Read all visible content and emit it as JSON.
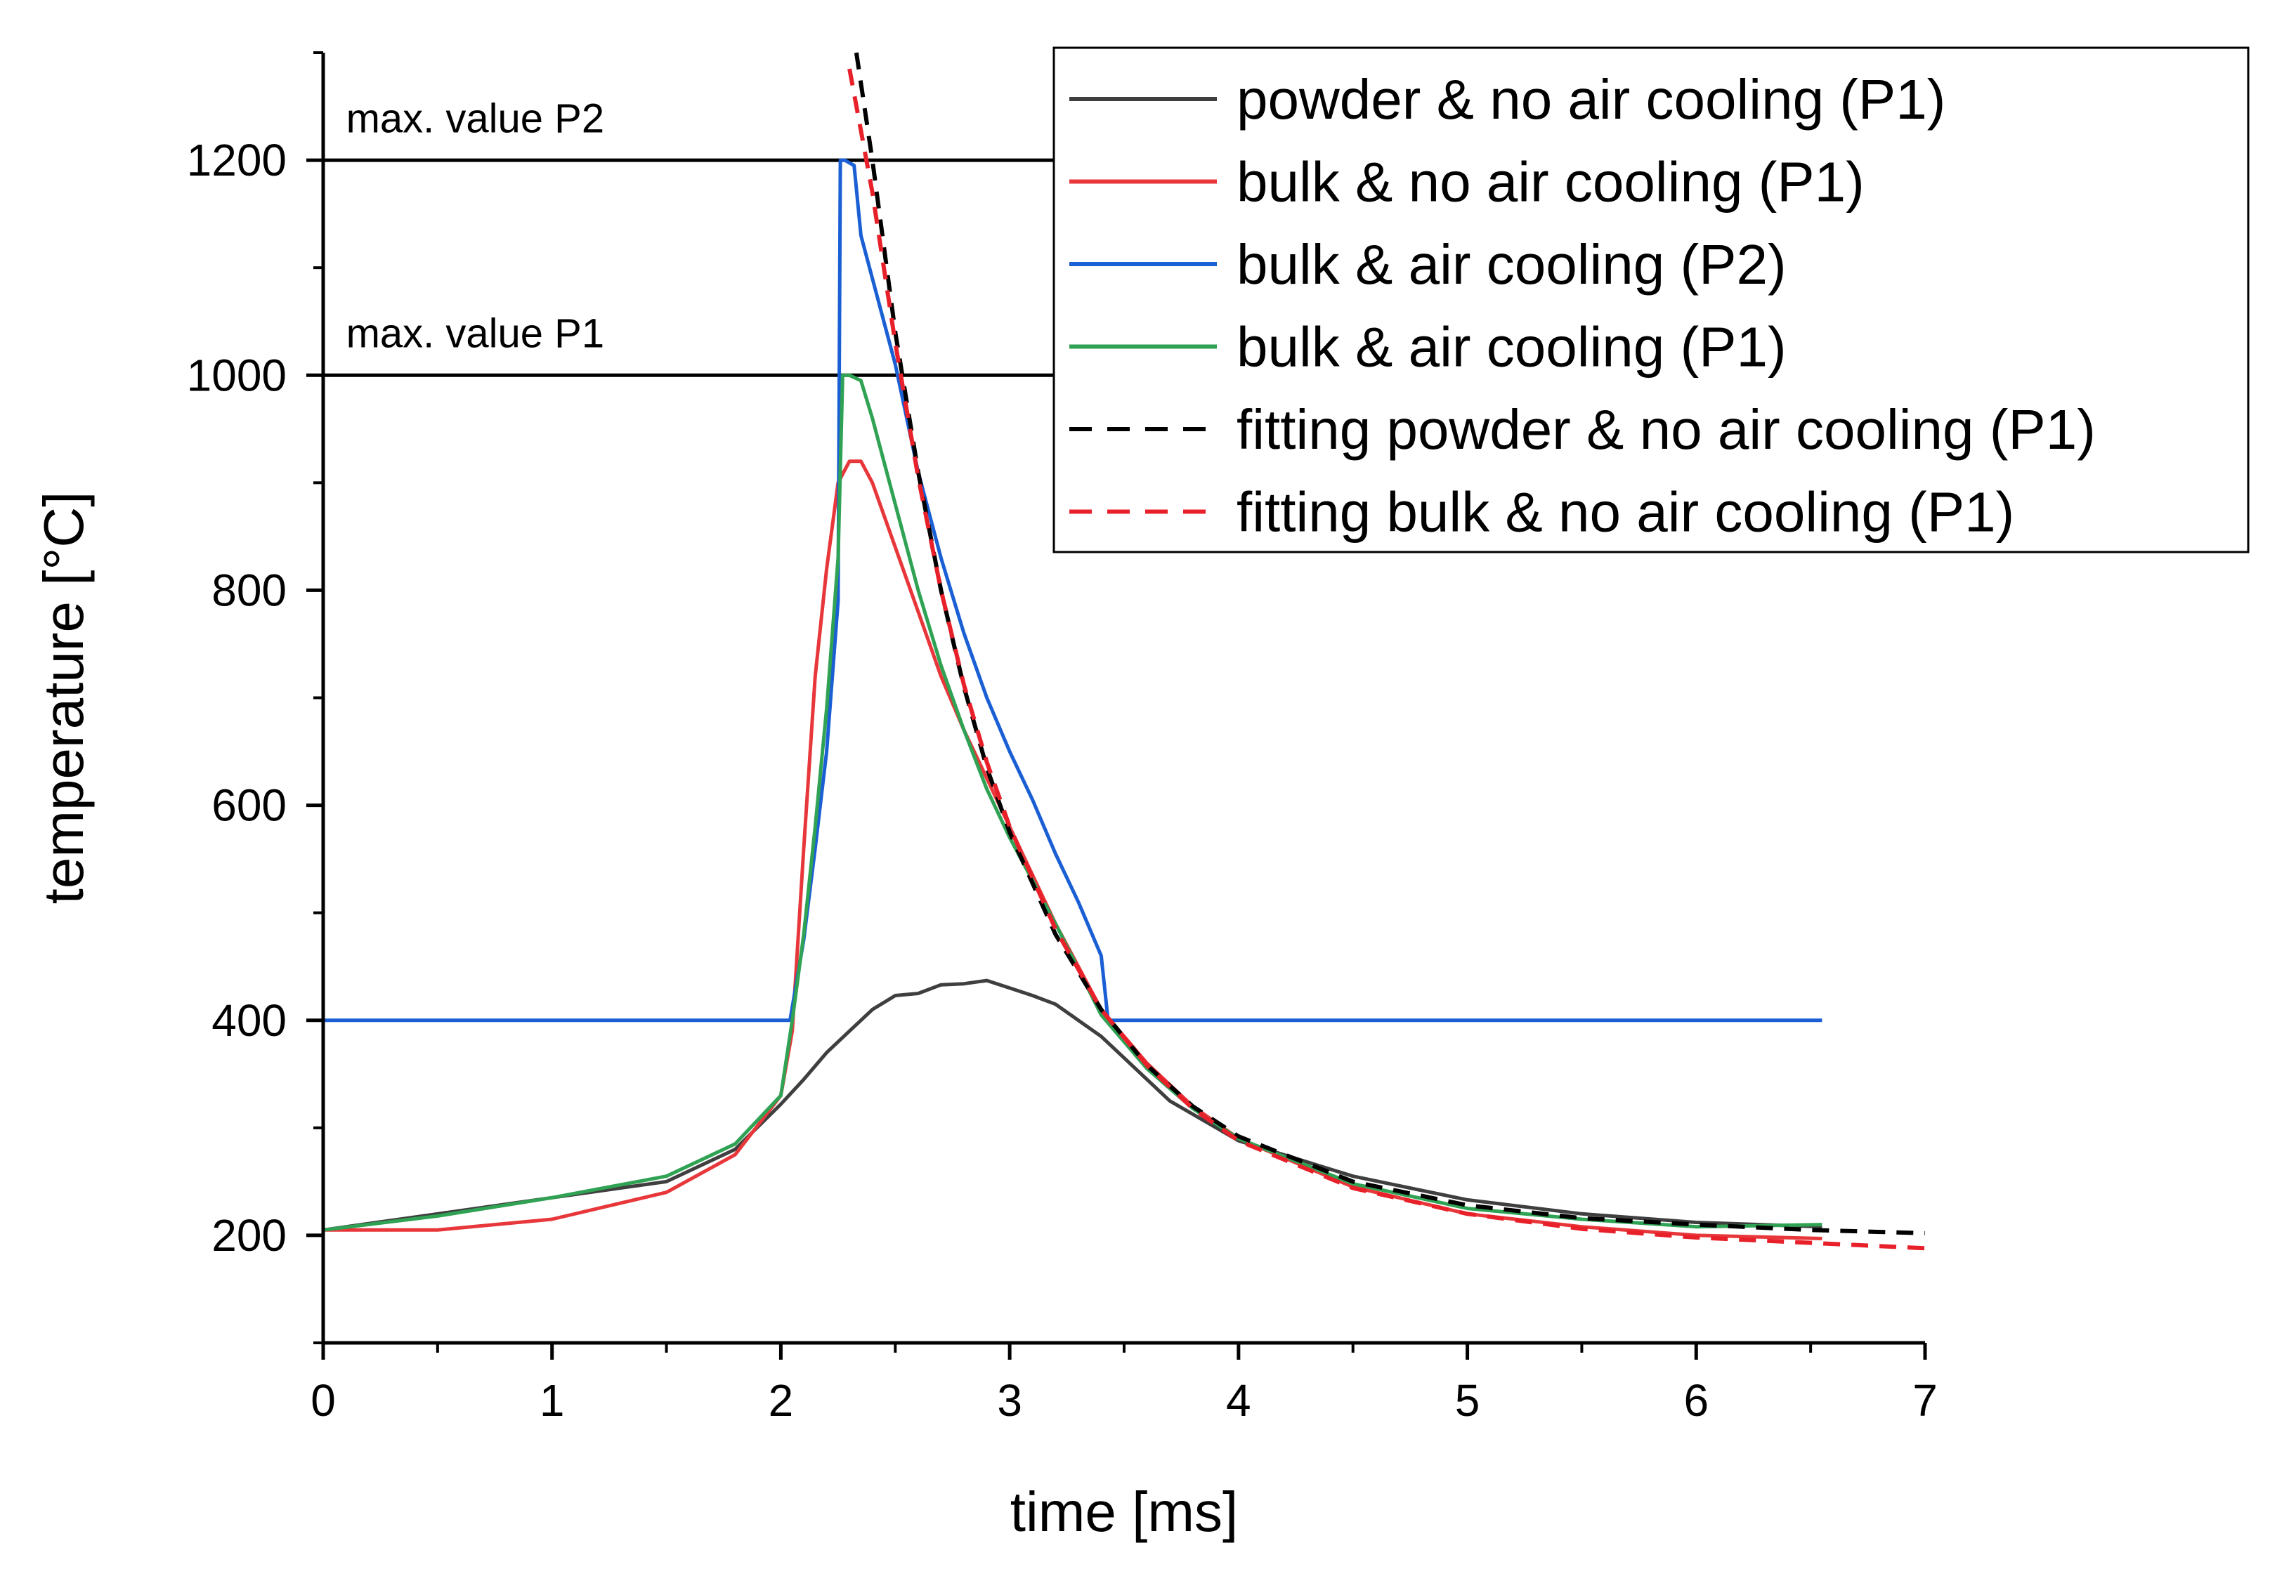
{
  "chart_data": {
    "type": "line",
    "xlabel": "time [ms]",
    "ylabel": "temperature [°C]",
    "xlim": [
      0,
      7
    ],
    "ylim": [
      100,
      1300
    ],
    "x_ticks": [
      0,
      1,
      2,
      3,
      4,
      5,
      6,
      7
    ],
    "y_ticks": [
      200,
      400,
      600,
      800,
      1000,
      1200
    ],
    "x_tick_labels": [
      "0",
      "1",
      "2",
      "3",
      "4",
      "5",
      "6",
      "7"
    ],
    "y_tick_labels": [
      "200",
      "400",
      "600",
      "800",
      "1000",
      "1200"
    ],
    "grid": false,
    "legend_position": "top-right",
    "annotations": [
      {
        "text": "max. value P2",
        "x": 0.1,
        "y": 1226
      },
      {
        "text": "max. value P1",
        "x": 0.1,
        "y": 1026
      }
    ],
    "reference_lines": [
      {
        "y": 1200,
        "x_range": [
          0,
          3.2
        ],
        "color": "#000000"
      },
      {
        "y": 1000,
        "x_range": [
          0,
          3.2
        ],
        "color": "#000000"
      }
    ],
    "series": [
      {
        "name": "powder & no air cooling (P1)",
        "color": "#3f3f3f",
        "dash": "solid",
        "x": [
          0,
          0.5,
          1.0,
          1.5,
          1.8,
          2.0,
          2.1,
          2.2,
          2.3,
          2.4,
          2.5,
          2.6,
          2.7,
          2.8,
          2.9,
          3.0,
          3.1,
          3.2,
          3.3,
          3.4,
          3.5,
          3.7,
          4.0,
          4.5,
          5.0,
          5.5,
          6.0,
          6.55
        ],
        "y": [
          205,
          220,
          235,
          250,
          280,
          322,
          345,
          370,
          390,
          410,
          423,
          425,
          433,
          434,
          437,
          430,
          423,
          415,
          400,
          385,
          365,
          325,
          288,
          255,
          233,
          220,
          212,
          208
        ]
      },
      {
        "name": "bulk & no air cooling (P1)",
        "color": "#e8373a",
        "dash": "solid",
        "x": [
          0,
          0.5,
          1.0,
          1.5,
          1.8,
          2.0,
          2.05,
          2.1,
          2.15,
          2.2,
          2.25,
          2.3,
          2.35,
          2.4,
          2.5,
          2.6,
          2.7,
          2.8,
          2.9,
          3.0,
          3.2,
          3.4,
          3.6,
          3.8,
          4.0,
          4.5,
          5.0,
          5.5,
          6.0,
          6.55
        ],
        "y": [
          205,
          205,
          215,
          240,
          275,
          330,
          390,
          560,
          720,
          820,
          900,
          920,
          920,
          900,
          840,
          780,
          720,
          670,
          625,
          580,
          490,
          410,
          360,
          320,
          290,
          245,
          220,
          208,
          200,
          197
        ]
      },
      {
        "name": "bulk & air cooling (P2)",
        "color": "#1a5fd4",
        "dash": "solid",
        "x": [
          0,
          2.04,
          2.1,
          2.15,
          2.2,
          2.25,
          2.26,
          2.28,
          2.32,
          2.35,
          2.4,
          2.45,
          2.5,
          2.6,
          2.7,
          2.8,
          2.9,
          3.0,
          3.1,
          3.2,
          3.3,
          3.4,
          3.43,
          6.55
        ],
        "y": [
          400,
          400,
          475,
          560,
          650,
          790,
          1200,
          1200,
          1195,
          1130,
          1090,
          1050,
          1010,
          910,
          830,
          760,
          700,
          650,
          605,
          555,
          510,
          460,
          400,
          400
        ]
      },
      {
        "name": "bulk & air cooling (P1)",
        "color": "#2fa254",
        "dash": "solid",
        "x": [
          0,
          0.5,
          1.0,
          1.5,
          1.8,
          2.0,
          2.05,
          2.1,
          2.15,
          2.2,
          2.25,
          2.27,
          2.3,
          2.35,
          2.4,
          2.5,
          2.6,
          2.7,
          2.8,
          2.9,
          3.0,
          3.2,
          3.4,
          3.6,
          3.8,
          4.0,
          4.5,
          5.0,
          5.5,
          6.0,
          6.55
        ],
        "y": [
          205,
          218,
          235,
          255,
          285,
          330,
          400,
          480,
          580,
          690,
          830,
          1000,
          1000,
          995,
          960,
          880,
          800,
          730,
          670,
          615,
          570,
          490,
          405,
          355,
          318,
          290,
          248,
          225,
          215,
          208,
          210
        ]
      },
      {
        "name": "fitting powder & no air cooling (P1)",
        "color": "#000000",
        "dash": "dashed",
        "x": [
          2.33,
          2.4,
          2.5,
          2.6,
          2.7,
          2.8,
          2.9,
          3.0,
          3.2,
          3.4,
          3.6,
          3.8,
          4.0,
          4.5,
          5.0,
          5.5,
          6.0,
          6.5,
          7.0
        ],
        "y": [
          1300,
          1200,
          1040,
          910,
          800,
          710,
          635,
          575,
          480,
          410,
          358,
          320,
          292,
          250,
          228,
          216,
          210,
          205,
          202
        ]
      },
      {
        "name": "fitting bulk & no air cooling (P1)",
        "color": "#e8202a",
        "dash": "dashed",
        "x": [
          2.3,
          2.4,
          2.5,
          2.6,
          2.7,
          2.8,
          2.9,
          3.0,
          3.2,
          3.4,
          3.6,
          3.8,
          4.0,
          4.5,
          5.0,
          5.5,
          6.0,
          6.5,
          7.0
        ],
        "y": [
          1285,
          1170,
          1030,
          905,
          800,
          712,
          640,
          580,
          485,
          410,
          358,
          318,
          288,
          244,
          220,
          206,
          198,
          193,
          188
        ]
      }
    ]
  }
}
